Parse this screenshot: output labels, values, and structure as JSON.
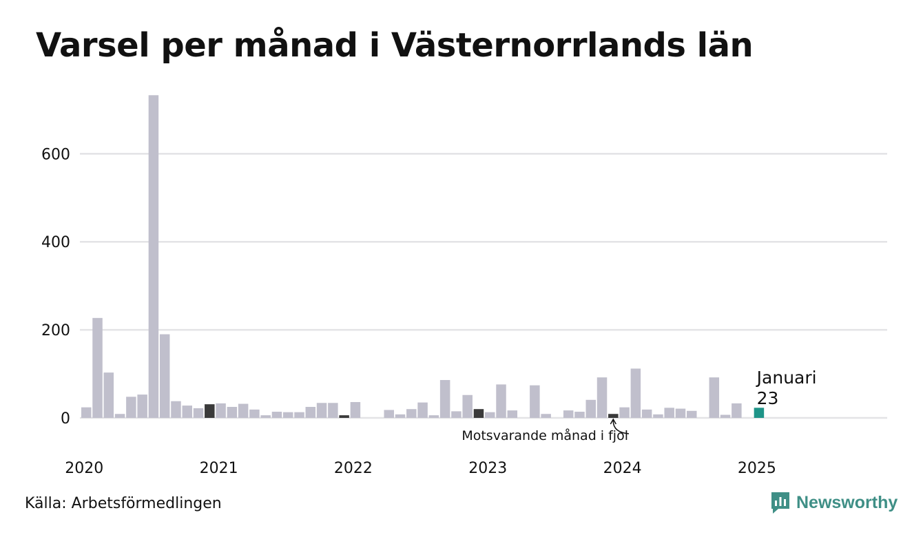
{
  "title": "Varsel per månad i Västernorrlands län",
  "source": "Källa: Arbetsförmedlingen",
  "brand": "Newsworthy",
  "colors": {
    "bar": "#c0bfcc",
    "bar_last_year": "#3a3a3a",
    "bar_current": "#1e9488",
    "grid": "#e3e3e6",
    "brand": "#3f8f86"
  },
  "chart_data": {
    "type": "bar",
    "ylim": [
      0,
      735
    ],
    "yticks": [
      0,
      200,
      400,
      600
    ],
    "xticks": [
      "2020",
      "2021",
      "2022",
      "2023",
      "2024",
      "2025"
    ],
    "xlim_months": 72,
    "grid": true,
    "categories": [
      "2020-01",
      "2020-02",
      "2020-03",
      "2020-04",
      "2020-05",
      "2020-06",
      "2020-07",
      "2020-08",
      "2020-09",
      "2020-10",
      "2020-11",
      "2020-12",
      "2021-01",
      "2021-02",
      "2021-03",
      "2021-04",
      "2021-05",
      "2021-06",
      "2021-07",
      "2021-08",
      "2021-09",
      "2021-10",
      "2021-11",
      "2021-12",
      "2022-01",
      "2022-02",
      "2022-03",
      "2022-04",
      "2022-05",
      "2022-06",
      "2022-07",
      "2022-08",
      "2022-09",
      "2022-10",
      "2022-11",
      "2022-12",
      "2023-01",
      "2023-02",
      "2023-03",
      "2023-04",
      "2023-05",
      "2023-06",
      "2023-07",
      "2023-08",
      "2023-09",
      "2023-10",
      "2023-11",
      "2023-12",
      "2024-01",
      "2024-02",
      "2024-03",
      "2024-04",
      "2024-05",
      "2024-06",
      "2024-07",
      "2024-08",
      "2024-09",
      "2024-10",
      "2024-11",
      "2024-12",
      "2025-01"
    ],
    "values": [
      24,
      227,
      103,
      9,
      48,
      53,
      733,
      190,
      38,
      28,
      22,
      31,
      33,
      25,
      32,
      19,
      6,
      14,
      13,
      13,
      25,
      34,
      34,
      6,
      36,
      0,
      0,
      18,
      8,
      20,
      35,
      6,
      86,
      15,
      52,
      20,
      13,
      76,
      17,
      0,
      74,
      9,
      0,
      17,
      14,
      41,
      92,
      9,
      24,
      112,
      19,
      8,
      23,
      21,
      16,
      0,
      92,
      7,
      33,
      0,
      23
    ],
    "highlight_last_year_index": [
      11,
      23,
      35,
      47
    ],
    "current_index": 60,
    "annotations": {
      "current_label": "Januari",
      "current_value": "23",
      "last_year_label": "Motsvarande månad i fjol"
    }
  }
}
